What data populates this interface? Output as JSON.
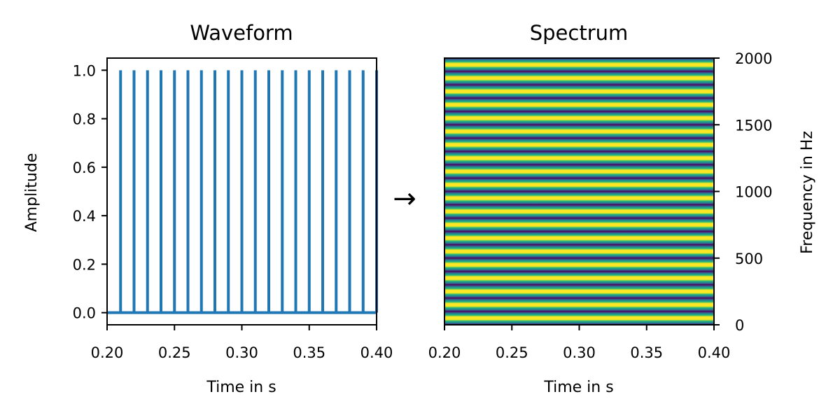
{
  "arrow": "→",
  "chart_data": [
    {
      "type": "line",
      "title": "Waveform",
      "xlabel": "Time in s",
      "ylabel": "Amplitude",
      "xlim": [
        0.2,
        0.4
      ],
      "ylim": [
        -0.05,
        1.05
      ],
      "xticks": [
        "0.20",
        "0.25",
        "0.30",
        "0.35",
        "0.40"
      ],
      "yticks": [
        "0.0",
        "0.2",
        "0.4",
        "0.6",
        "0.8",
        "1.0"
      ],
      "color": "#1f77b4",
      "series": [
        {
          "impulse_times": [
            0.21,
            0.22,
            0.23,
            0.24,
            0.25,
            0.26,
            0.27,
            0.28,
            0.29,
            0.3,
            0.31,
            0.32,
            0.33,
            0.34,
            0.35,
            0.36,
            0.37,
            0.38,
            0.39,
            0.4
          ],
          "impulse_amplitude": 1.0,
          "baseline": 0.0
        }
      ]
    },
    {
      "type": "heatmap",
      "title": "Spectrum",
      "xlabel": "Time in s",
      "ylabel": "Frequency in Hz",
      "xlim": [
        0.2,
        0.4
      ],
      "ylim": [
        0,
        2000
      ],
      "xticks": [
        "0.20",
        "0.25",
        "0.30",
        "0.35",
        "0.40"
      ],
      "yticks": [
        "0",
        "500",
        "1000",
        "1500",
        "2000"
      ],
      "yaxis_position": "right",
      "colormap": "viridis",
      "harmonic_spacing_hz": 100,
      "peak_offset_hz": 50
    }
  ]
}
